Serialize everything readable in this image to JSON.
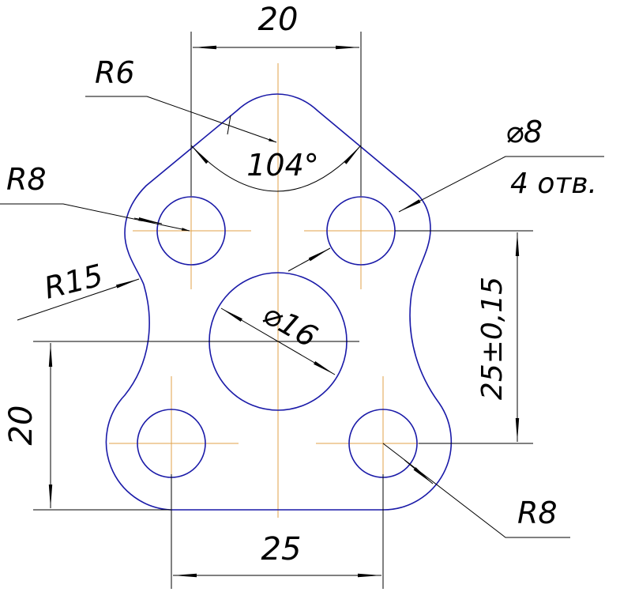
{
  "drawing": {
    "colors": {
      "outline": "#1a1aa8",
      "centerline": "#e0a24a",
      "dimension": "#000000"
    },
    "labels": {
      "top_width": "20",
      "top_radius": "R6",
      "top_angle": "104°",
      "hole_diameter": "⌀8",
      "hole_count": "4 отв.",
      "left_radius": "R8",
      "side_radius": "R15",
      "center_hole": "⌀16",
      "right_vertical": "25±0,15",
      "left_vertical": "20",
      "bottom_width": "25",
      "bottom_radius": "R8"
    }
  }
}
